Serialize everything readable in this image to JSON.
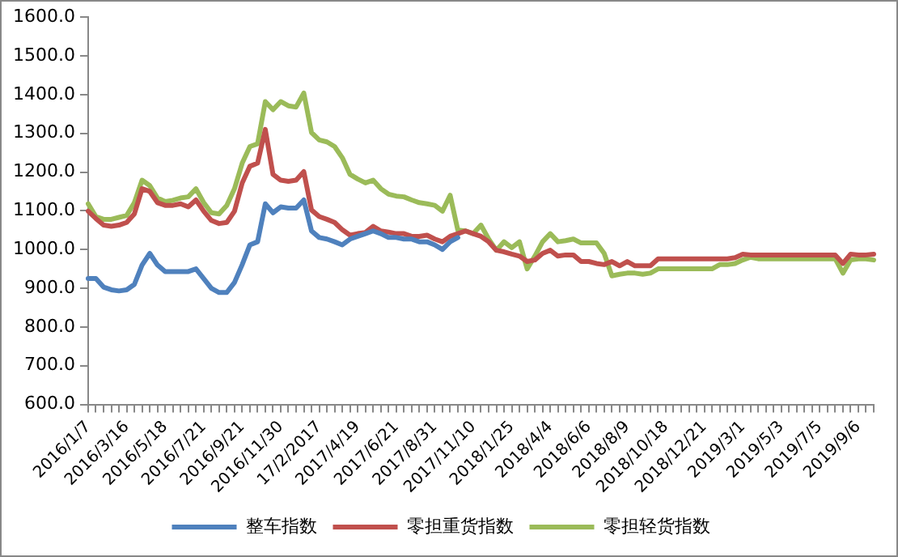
{
  "chart_data": {
    "type": "line",
    "categories": [
      "2016/1/7",
      null,
      null,
      null,
      null,
      "2016/3/16",
      null,
      null,
      null,
      null,
      "2016/5/18",
      null,
      null,
      null,
      null,
      "2016/7/21",
      null,
      null,
      null,
      null,
      "2016/9/21",
      null,
      null,
      null,
      null,
      "2016/11/30",
      null,
      null,
      null,
      null,
      "17/2/2017",
      null,
      null,
      null,
      null,
      "2017/4/19",
      null,
      null,
      null,
      null,
      "2017/6/21",
      null,
      null,
      null,
      null,
      "2017/8/31",
      null,
      null,
      null,
      null,
      "2017/11/10",
      null,
      null,
      null,
      null,
      "2018/1/25",
      null,
      null,
      null,
      null,
      "2018/4/4",
      null,
      null,
      null,
      null,
      "2018/6/6",
      null,
      null,
      null,
      null,
      "2018/8/9",
      null,
      null,
      null,
      null,
      "2018/10/18",
      null,
      null,
      null,
      null,
      "2018/12/21",
      null,
      null,
      null,
      null,
      "2019/3/1",
      null,
      null,
      null,
      null,
      "2019/5/3",
      null,
      null,
      null,
      null,
      "2019/7/5",
      null,
      null,
      null,
      null,
      "2019/9/6",
      null,
      null
    ],
    "series": [
      {
        "name": "整车指数",
        "color": "#4f81bd",
        "values": [
          925,
          925,
          903,
          896,
          893,
          896,
          910,
          960,
          990,
          960,
          943,
          943,
          943,
          943,
          950,
          925,
          900,
          889,
          889,
          915,
          961,
          1012,
          1020,
          1118,
          1095,
          1110,
          1107,
          1107,
          1128,
          1048,
          1031,
          1027,
          1020,
          1012,
          1027,
          1034,
          1041,
          1048,
          1041,
          1031,
          1031,
          1027,
          1027,
          1020,
          1020,
          1012,
          1000,
          1020,
          1031,
          null,
          null,
          null,
          null,
          null,
          null,
          null,
          null,
          null,
          null,
          null,
          null,
          null,
          null,
          null,
          null,
          null,
          null,
          null,
          null,
          null,
          null,
          null,
          null,
          null,
          null,
          null,
          null,
          null,
          null,
          null,
          null,
          null,
          null,
          null,
          null,
          null,
          null,
          null,
          null,
          null,
          null,
          null,
          null,
          null,
          null,
          null,
          null,
          null,
          null,
          null,
          null,
          null,
          null
        ]
      },
      {
        "name": "零担重货指数",
        "color": "#c0504d",
        "values": [
          1099,
          1080,
          1063,
          1060,
          1063,
          1070,
          1092,
          1157,
          1150,
          1121,
          1114,
          1114,
          1118,
          1110,
          1128,
          1099,
          1075,
          1067,
          1070,
          1099,
          1172,
          1215,
          1223,
          1310,
          1194,
          1179,
          1176,
          1179,
          1201,
          1102,
          1085,
          1078,
          1070,
          1051,
          1037,
          1041,
          1044,
          1060,
          1048,
          1045,
          1041,
          1041,
          1034,
          1034,
          1037,
          1027,
          1020,
          1034,
          1041,
          1048,
          1041,
          1034,
          1020,
          998,
          994,
          988,
          983,
          969,
          973,
          990,
          998,
          983,
          986,
          986,
          969,
          969,
          964,
          961,
          969,
          958,
          969,
          958,
          958,
          958,
          976,
          976,
          976,
          976,
          976,
          976,
          976,
          976,
          976,
          976,
          979,
          988,
          986,
          986,
          986,
          986,
          986,
          986,
          986,
          986,
          986,
          986,
          986,
          986,
          964,
          988,
          986,
          986,
          988
        ]
      },
      {
        "name": "零担轻货指数",
        "color": "#9bbb59",
        "values": [
          1118,
          1085,
          1078,
          1078,
          1083,
          1088,
          1121,
          1179,
          1165,
          1133,
          1124,
          1127,
          1133,
          1136,
          1157,
          1121,
          1095,
          1092,
          1114,
          1157,
          1223,
          1266,
          1273,
          1382,
          1361,
          1382,
          1371,
          1368,
          1404,
          1302,
          1283,
          1278,
          1266,
          1237,
          1194,
          1182,
          1172,
          1179,
          1157,
          1143,
          1138,
          1136,
          1128,
          1121,
          1118,
          1114,
          1099,
          1140,
          1050,
          1048,
          1041,
          1063,
          1027,
          998,
          1020,
          1005,
          1020,
          950,
          983,
          1020,
          1041,
          1020,
          1023,
          1027,
          1017,
          1017,
          1017,
          990,
          932,
          936,
          939,
          939,
          936,
          939,
          950,
          950,
          950,
          950,
          950,
          950,
          950,
          950,
          961,
          961,
          964,
          973,
          980,
          976,
          976,
          976,
          976,
          976,
          976,
          976,
          976,
          976,
          976,
          976,
          939,
          973,
          976,
          976,
          973
        ]
      }
    ],
    "ylim": [
      600,
      1600
    ],
    "yticks": [
      {
        "value": 600,
        "label": "600.0"
      },
      {
        "value": 700,
        "label": "700.0"
      },
      {
        "value": 800,
        "label": "800.0"
      },
      {
        "value": 900,
        "label": "900.0"
      },
      {
        "value": 1000,
        "label": "1000.0"
      },
      {
        "value": 1100,
        "label": "1100.0"
      },
      {
        "value": 1200,
        "label": "1200.0"
      },
      {
        "value": 1300,
        "label": "1300.0"
      },
      {
        "value": 1400,
        "label": "1400.0"
      },
      {
        "value": 1500,
        "label": "1500.0"
      },
      {
        "value": 1600,
        "label": "1600.0"
      }
    ],
    "grid": false,
    "legend": "bottom",
    "marker": "none",
    "line_style": "solid"
  }
}
